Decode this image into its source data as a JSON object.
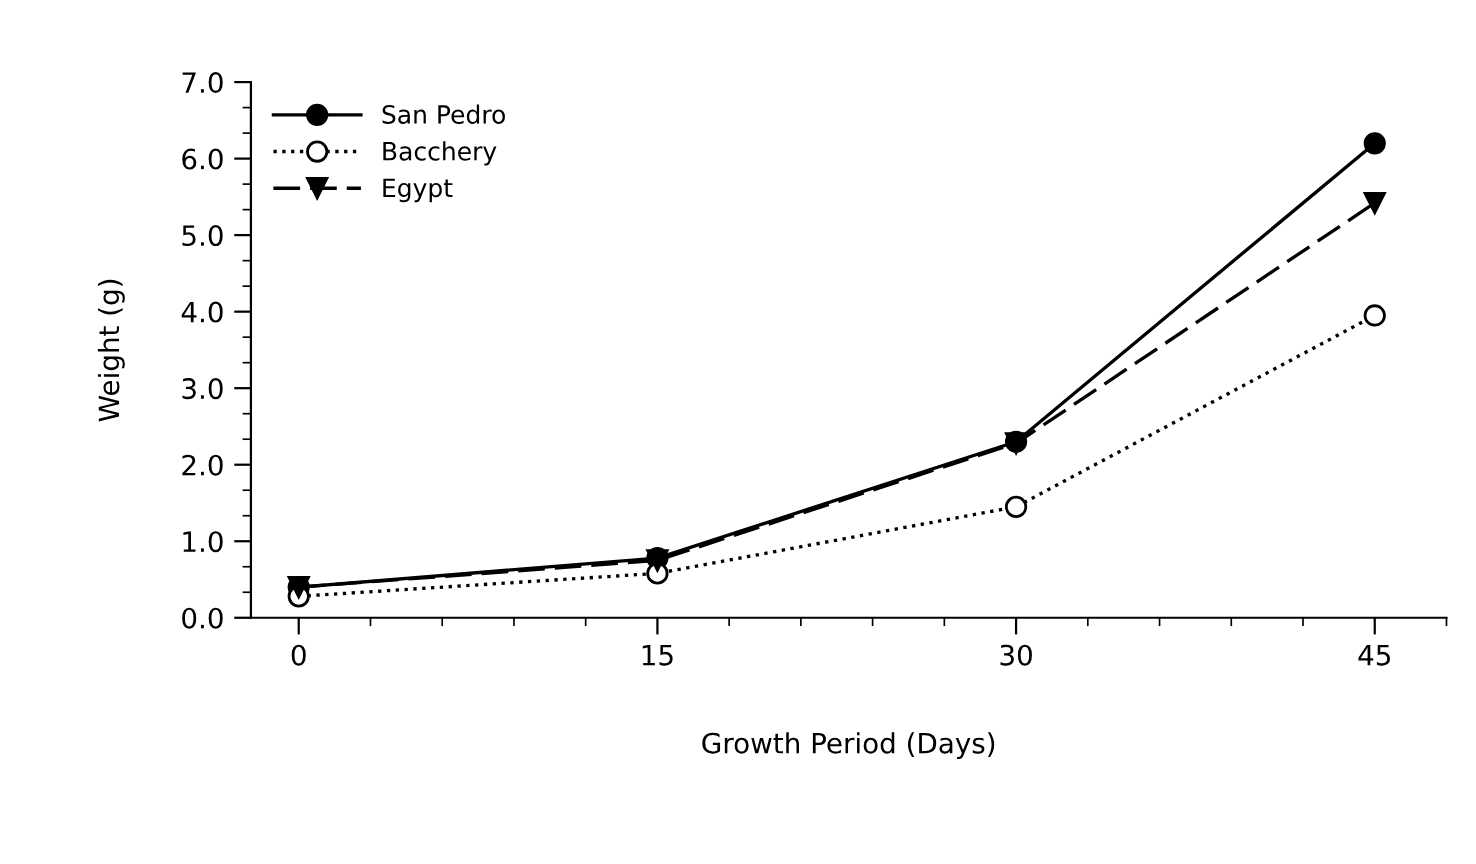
{
  "chart_data": {
    "type": "line",
    "xlabel": "Growth Period (Days)",
    "ylabel": "Weight (g)",
    "x": [
      0,
      15,
      30,
      45
    ],
    "series": [
      {
        "name": "San Pedro",
        "color": "#000000",
        "values": [
          0.4,
          0.78,
          2.3,
          6.2
        ],
        "marker": "circle",
        "line_style": "solid"
      },
      {
        "name": "Bacchery",
        "color": "#000000",
        "values": [
          0.28,
          0.58,
          1.45,
          3.95
        ],
        "marker": "circle",
        "line_style": "dotted"
      },
      {
        "name": "Egypt",
        "color": "#000000",
        "values": [
          0.4,
          0.75,
          2.28,
          5.42
        ],
        "marker": "triangle",
        "line_style": "dashed"
      }
    ],
    "xlim": [
      -2,
      48
    ],
    "xticks": [
      0,
      15,
      30,
      45
    ],
    "ylim": [
      0,
      7
    ],
    "yticks": [
      {
        "value": 0,
        "label": "0.0"
      },
      {
        "value": 1,
        "label": "1.0"
      },
      {
        "value": 2,
        "label": "2.0"
      },
      {
        "value": 3,
        "label": "3.0"
      },
      {
        "value": 4,
        "label": "4.0"
      },
      {
        "value": 5,
        "label": "5.0"
      },
      {
        "value": 6,
        "label": "6.0"
      },
      {
        "value": 7,
        "label": "7.0"
      }
    ],
    "grid": false,
    "legend": "top left"
  }
}
